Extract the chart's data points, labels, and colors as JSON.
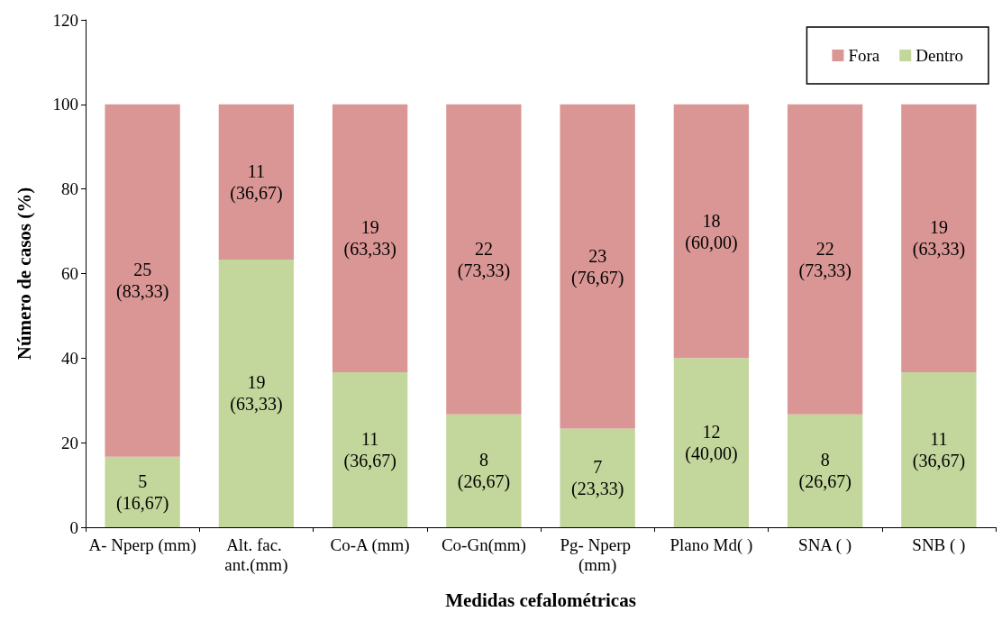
{
  "chart_data": {
    "type": "bar",
    "stacked": true,
    "xlabel": "Medidas cefalométricas",
    "ylabel": "Número de casos (%)",
    "categories": [
      "A- Nperp (mm)",
      "Alt. fac. ant.(mm)",
      "Co-A (mm)",
      "Co-Gn(mm)",
      "Pg- Nperp (mm)",
      "Plano Md( )",
      "SNA ( )",
      "SNB ( )"
    ],
    "series": [
      {
        "name": "Dentro",
        "color": "#c3d69b",
        "values": [
          16.67,
          63.33,
          36.67,
          26.67,
          23.33,
          40.0,
          26.67,
          36.67
        ],
        "value_labels": [
          "5\n(16,67)",
          "19\n(63,33)",
          "11\n(36,67)",
          "8\n(26,67)",
          "7\n(23,33)",
          "12\n(40,00)",
          "8\n(26,67)",
          "11\n(36,67)"
        ]
      },
      {
        "name": "Fora",
        "color": "#d99694",
        "values": [
          83.33,
          36.67,
          63.33,
          73.33,
          76.67,
          60.0,
          73.33,
          63.33
        ],
        "value_labels": [
          "25\n(83,33)",
          "11\n(36,67)",
          "19\n(63,33)",
          "22\n(73,33)",
          "23\n(76,67)",
          "18\n(60,00)",
          "22\n(73,33)",
          "19\n(63,33)"
        ]
      }
    ],
    "ylim": [
      0,
      120
    ],
    "yticks": [
      0,
      20,
      40,
      60,
      80,
      100,
      120
    ],
    "grid": false,
    "legend": "top right"
  }
}
